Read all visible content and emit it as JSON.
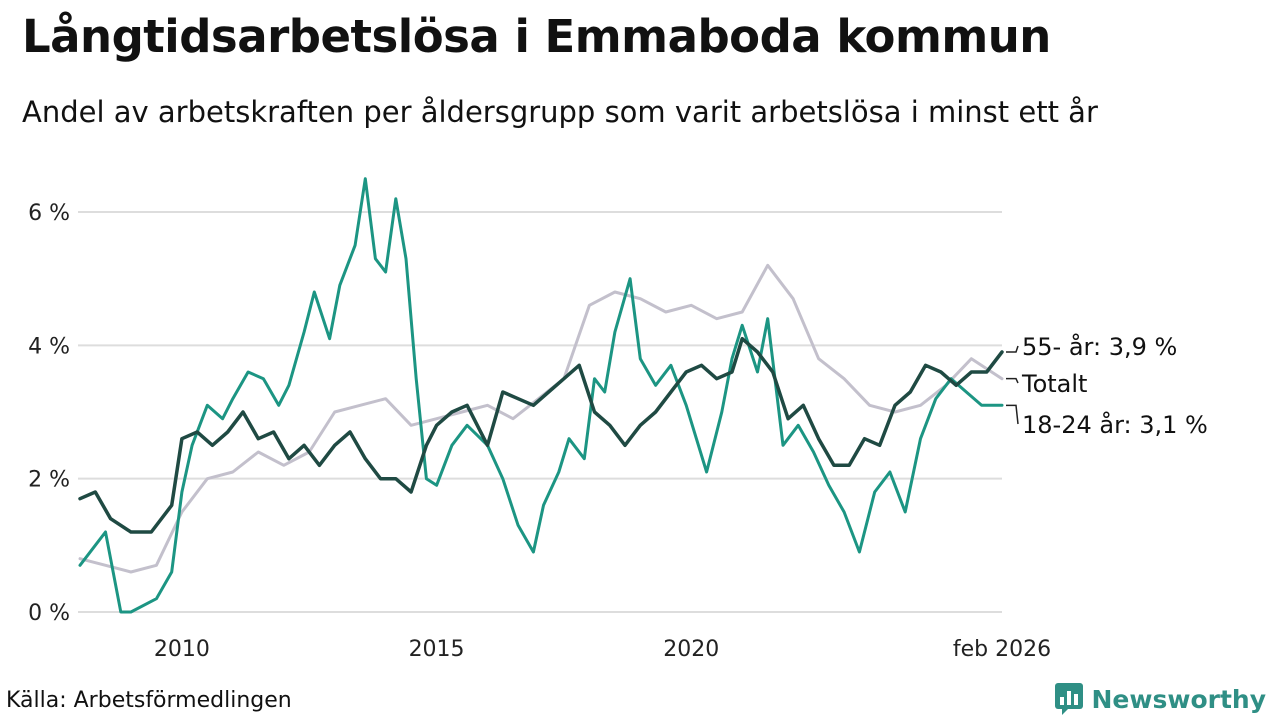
{
  "title": "Långtidsarbetslösa i Emmaboda kommun",
  "subtitle": "Andel av arbetskraften per åldersgrupp som varit arbetslösa i minst ett år",
  "source": "Källa: Arbetsförmedlingen",
  "brand": "Newsworthy",
  "colors": {
    "accent": "#2f8f85",
    "grid": "#dddddd"
  },
  "chart_data": {
    "type": "line",
    "title": "Långtidsarbetslösa i Emmaboda kommun",
    "xlabel": "",
    "ylabel": "",
    "x_range": [
      2008.0,
      2026.1
    ],
    "ylim": [
      0,
      6.6
    ],
    "y_ticks": [
      0,
      2,
      4,
      6
    ],
    "y_tick_labels": [
      "0 %",
      "2 %",
      "4 %",
      "6 %"
    ],
    "x_ticks": [
      2010,
      2015,
      2020,
      2026.1
    ],
    "x_tick_labels": [
      "2010",
      "2015",
      "2020",
      "feb 2026"
    ],
    "grid": true,
    "series": [
      {
        "name": "Totalt",
        "label": "Totalt",
        "color": "#c3c0cc",
        "width": 3,
        "x": [
          2008.0,
          2008.5,
          2009.0,
          2009.5,
          2010.0,
          2010.5,
          2011.0,
          2011.5,
          2012.0,
          2012.5,
          2013.0,
          2013.5,
          2014.0,
          2014.5,
          2015.0,
          2015.5,
          2016.0,
          2016.5,
          2017.0,
          2017.5,
          2018.0,
          2018.5,
          2019.0,
          2019.5,
          2020.0,
          2020.5,
          2021.0,
          2021.5,
          2022.0,
          2022.5,
          2023.0,
          2023.5,
          2024.0,
          2024.5,
          2025.0,
          2025.5,
          2026.1
        ],
        "y": [
          0.8,
          0.7,
          0.6,
          0.7,
          1.5,
          2.0,
          2.1,
          2.4,
          2.2,
          2.4,
          3.0,
          3.1,
          3.2,
          2.8,
          2.9,
          3.0,
          3.1,
          2.9,
          3.2,
          3.5,
          4.6,
          4.8,
          4.7,
          4.5,
          4.6,
          4.4,
          4.5,
          5.2,
          4.7,
          3.8,
          3.5,
          3.1,
          3.0,
          3.1,
          3.4,
          3.8,
          3.5
        ]
      },
      {
        "name": "18-24 år",
        "label": "18-24 år: 3,1 %",
        "color": "#1c9583",
        "width": 3,
        "x": [
          2008.0,
          2008.3,
          2008.5,
          2008.8,
          2009.0,
          2009.5,
          2009.8,
          2010.0,
          2010.2,
          2010.5,
          2010.8,
          2011.0,
          2011.3,
          2011.6,
          2011.9,
          2012.1,
          2012.4,
          2012.6,
          2012.9,
          2013.1,
          2013.4,
          2013.6,
          2013.8,
          2014.0,
          2014.2,
          2014.4,
          2014.6,
          2014.8,
          2015.0,
          2015.3,
          2015.6,
          2016.0,
          2016.3,
          2016.6,
          2016.9,
          2017.1,
          2017.4,
          2017.6,
          2017.9,
          2018.1,
          2018.3,
          2018.5,
          2018.8,
          2019.0,
          2019.3,
          2019.6,
          2019.9,
          2020.1,
          2020.3,
          2020.6,
          2020.8,
          2021.0,
          2021.3,
          2021.5,
          2021.8,
          2022.1,
          2022.4,
          2022.7,
          2023.0,
          2023.3,
          2023.6,
          2023.9,
          2024.2,
          2024.5,
          2024.8,
          2025.1,
          2025.4,
          2025.7,
          2026.1
        ],
        "y": [
          0.7,
          1.0,
          1.2,
          0.0,
          0.0,
          0.2,
          0.6,
          1.8,
          2.5,
          3.1,
          2.9,
          3.2,
          3.6,
          3.5,
          3.1,
          3.4,
          4.2,
          4.8,
          4.1,
          4.9,
          5.5,
          6.5,
          5.3,
          5.1,
          6.2,
          5.3,
          3.5,
          2.0,
          1.9,
          2.5,
          2.8,
          2.5,
          2.0,
          1.3,
          0.9,
          1.6,
          2.1,
          2.6,
          2.3,
          3.5,
          3.3,
          4.2,
          5.0,
          3.8,
          3.4,
          3.7,
          3.1,
          2.6,
          2.1,
          3.0,
          3.8,
          4.3,
          3.6,
          4.4,
          2.5,
          2.8,
          2.4,
          1.9,
          1.5,
          0.9,
          1.8,
          2.1,
          1.5,
          2.6,
          3.2,
          3.5,
          3.3,
          3.1,
          3.1
        ]
      },
      {
        "name": "55- år",
        "label": "55- år: 3,9 %",
        "color": "#1f4a43",
        "width": 3.5,
        "x": [
          2008.0,
          2008.3,
          2008.6,
          2009.0,
          2009.4,
          2009.8,
          2010.0,
          2010.3,
          2010.6,
          2010.9,
          2011.2,
          2011.5,
          2011.8,
          2012.1,
          2012.4,
          2012.7,
          2013.0,
          2013.3,
          2013.6,
          2013.9,
          2014.2,
          2014.5,
          2014.8,
          2015.0,
          2015.3,
          2015.6,
          2016.0,
          2016.3,
          2016.6,
          2016.9,
          2017.2,
          2017.5,
          2017.8,
          2018.1,
          2018.4,
          2018.7,
          2019.0,
          2019.3,
          2019.6,
          2019.9,
          2020.2,
          2020.5,
          2020.8,
          2021.0,
          2021.3,
          2021.6,
          2021.9,
          2022.2,
          2022.5,
          2022.8,
          2023.1,
          2023.4,
          2023.7,
          2024.0,
          2024.3,
          2024.6,
          2024.9,
          2025.2,
          2025.5,
          2025.8,
          2026.1
        ],
        "y": [
          1.7,
          1.8,
          1.4,
          1.2,
          1.2,
          1.6,
          2.6,
          2.7,
          2.5,
          2.7,
          3.0,
          2.6,
          2.7,
          2.3,
          2.5,
          2.2,
          2.5,
          2.7,
          2.3,
          2.0,
          2.0,
          1.8,
          2.5,
          2.8,
          3.0,
          3.1,
          2.5,
          3.3,
          3.2,
          3.1,
          3.3,
          3.5,
          3.7,
          3.0,
          2.8,
          2.5,
          2.8,
          3.0,
          3.3,
          3.6,
          3.7,
          3.5,
          3.6,
          4.1,
          3.9,
          3.6,
          2.9,
          3.1,
          2.6,
          2.2,
          2.2,
          2.6,
          2.5,
          3.1,
          3.3,
          3.7,
          3.6,
          3.4,
          3.6,
          3.6,
          3.9
        ]
      }
    ]
  }
}
